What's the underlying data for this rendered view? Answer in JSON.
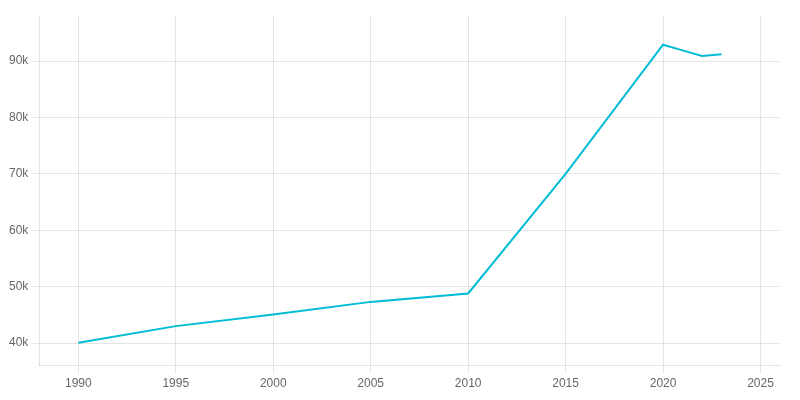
{
  "chart_data": {
    "type": "line",
    "x": [
      1990,
      1995,
      2000,
      2005,
      2010,
      2015,
      2020,
      2021,
      2022,
      2023
    ],
    "values": [
      40052,
      43000,
      45054,
      47300,
      48787,
      70000,
      92900,
      91900,
      90900,
      91200
    ],
    "color": "#00BCD4",
    "xlim": [
      1988,
      2026
    ],
    "xticks": [
      1990,
      1995,
      2000,
      2005,
      2010,
      2015,
      2020,
      2025
    ],
    "ylim": [
      36000,
      98000
    ],
    "yticks": [
      {
        "value": 40000,
        "label": "40k"
      },
      {
        "value": 50000,
        "label": "50k"
      },
      {
        "value": 60000,
        "label": "60k"
      },
      {
        "value": 70000,
        "label": "70k"
      },
      {
        "value": 80000,
        "label": "80k"
      },
      {
        "value": 90000,
        "label": "90k"
      }
    ],
    "grid": true
  }
}
